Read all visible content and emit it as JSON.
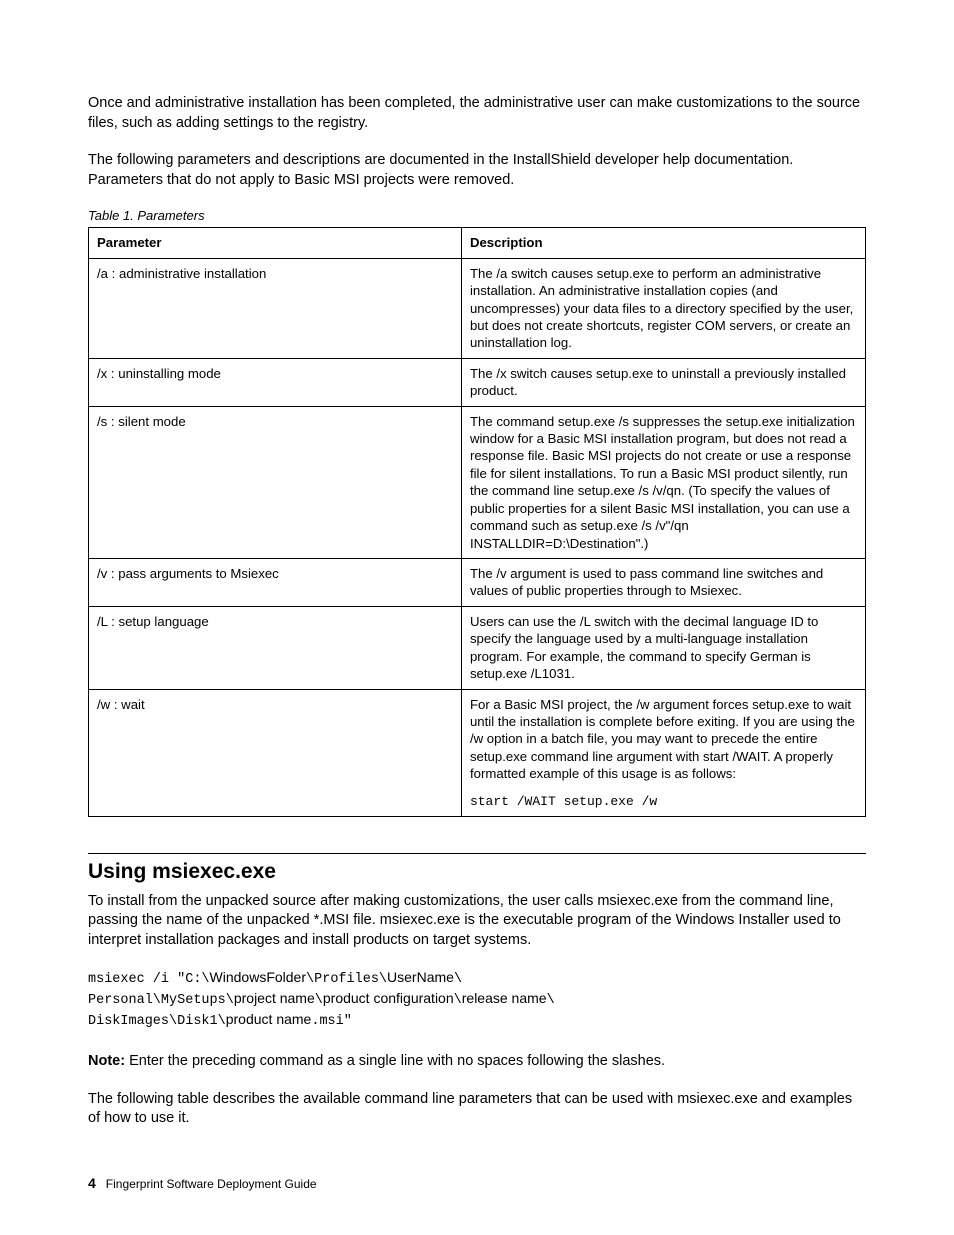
{
  "intro": {
    "p1": "Once and administrative installation has been completed, the administrative user can make customizations to the source files, such as adding settings to the registry.",
    "p2": "The following parameters and descriptions are documented in the InstallShield developer help documentation. Parameters that do not apply to Basic MSI projects were removed."
  },
  "table1": {
    "caption": "Table 1. Parameters",
    "columns": [
      "Parameter",
      "Description"
    ],
    "rows": [
      {
        "param": "/a : administrative installation",
        "desc": "The /a switch causes setup.exe to perform an administrative installation. An administrative installation copies (and uncompresses) your data files to a directory specified by the user, but does not create shortcuts, register COM servers, or create an uninstallation log."
      },
      {
        "param": "/x : uninstalling mode",
        "desc": "The /x switch causes setup.exe to uninstall a previously installed product."
      },
      {
        "param": "/s : silent mode",
        "desc": "The command setup.exe /s suppresses the setup.exe initialization window for a Basic MSI installation program, but does not read a response file. Basic MSI projects do not create or use a response file for silent installations. To run a Basic MSI product silently, run the command line setup.exe /s /v/qn. (To specify the values of public properties for a silent Basic MSI installation, you can use a command such as setup.exe /s /v\"/qn INSTALLDIR=D:\\Destination\".)"
      },
      {
        "param": "/v : pass arguments to Msiexec",
        "desc": "The /v argument is used to pass command line switches and values of public properties through to Msiexec."
      },
      {
        "param": "/L : setup language",
        "desc": "Users can use the /L switch with the decimal language ID to specify the language used by a multi-language installation program. For example, the command to specify German is setup.exe /L1031."
      },
      {
        "param": "/w : wait",
        "desc": "For a Basic MSI project, the /w argument forces setup.exe to wait until the installation is complete before exiting. If you are using the /w option in a batch file, you may want to precede the entire setup.exe command line argument with start /WAIT. A properly formatted example of this usage is as follows:",
        "code": "start /WAIT setup.exe /w"
      }
    ]
  },
  "section2": {
    "title": "Using msiexec.exe",
    "p1": "To install from the unpacked source after making customizations, the user calls msiexec.exe from the command line, passing the name of the unpacked *.MSI file. msiexec.exe is the executable program of the Windows Installer used to interpret installation packages and install products on target systems.",
    "cmd": {
      "l1a": "msiexec /i \"C:\\",
      "l1b": "WindowsFolder",
      "l1c": "\\Profiles\\",
      "l1d": "UserName",
      "l1e": "\\",
      "l2a": "Personal\\MySetups\\",
      "l2b": "project name",
      "l2c": "\\",
      "l2d": "product configuration",
      "l2e": "\\",
      "l2f": "release name",
      "l2g": "\\",
      "l3a": "DiskImages\\Disk1\\",
      "l3b": "product name",
      "l3c": ".msi\""
    },
    "note_label": "Note:",
    "note_text": " Enter the preceding command as a single line with no spaces following the slashes.",
    "p3": "The following table describes the available command line parameters that can be used with msiexec.exe and examples of how to use it."
  },
  "footer": {
    "page": "4",
    "title": "Fingerprint Software Deployment Guide"
  }
}
